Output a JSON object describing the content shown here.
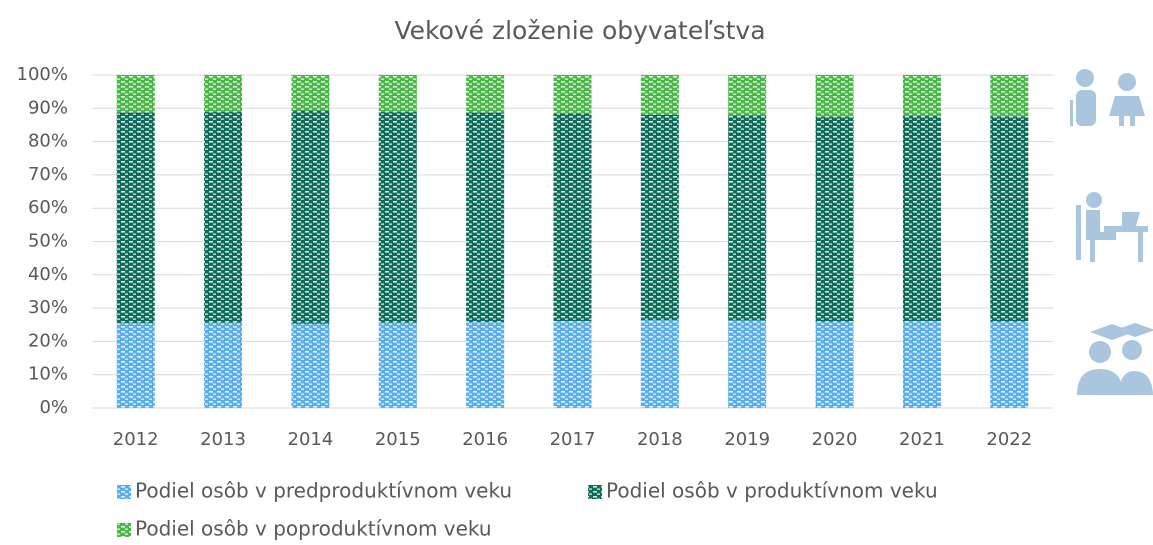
{
  "chart_data": {
    "type": "stacked_bar",
    "title": "Vekové zloženie obyvateľstva",
    "categories": [
      "2012",
      "2013",
      "2014",
      "2015",
      "2016",
      "2017",
      "2018",
      "2019",
      "2020",
      "2021",
      "2022"
    ],
    "series": [
      {
        "name": "Podiel osôb v predproduktívnom veku",
        "color": "#5aaeee",
        "values": [
          25.5,
          25.6,
          25.3,
          25.6,
          25.8,
          26.1,
          26.4,
          26.3,
          25.9,
          26.1,
          25.9
        ]
      },
      {
        "name": "Podiel osôb v produktívnom veku",
        "color": "#0e6e5b",
        "values": [
          63.3,
          63.3,
          64.0,
          63.3,
          63.0,
          62.4,
          61.7,
          61.6,
          61.6,
          61.6,
          61.7
        ]
      },
      {
        "name": "Podiel osôb v poproduktívnom veku",
        "color": "#4cb84a",
        "values": [
          11.2,
          11.1,
          10.7,
          11.1,
          11.2,
          11.5,
          11.9,
          12.1,
          12.5,
          12.3,
          12.4
        ]
      }
    ],
    "ylim": [
      0,
      100
    ],
    "yticks": [
      {
        "value": 0,
        "label": "0%"
      },
      {
        "value": 10,
        "label": "10%"
      },
      {
        "value": 20,
        "label": "20%"
      },
      {
        "value": 30,
        "label": "30%"
      },
      {
        "value": 40,
        "label": "40%"
      },
      {
        "value": 50,
        "label": "50%"
      },
      {
        "value": 60,
        "label": "60%"
      },
      {
        "value": 70,
        "label": "70%"
      },
      {
        "value": 80,
        "label": "80%"
      },
      {
        "value": 90,
        "label": "90%"
      },
      {
        "value": 100,
        "label": "100%"
      }
    ],
    "grid": true,
    "legend": "bottom"
  }
}
